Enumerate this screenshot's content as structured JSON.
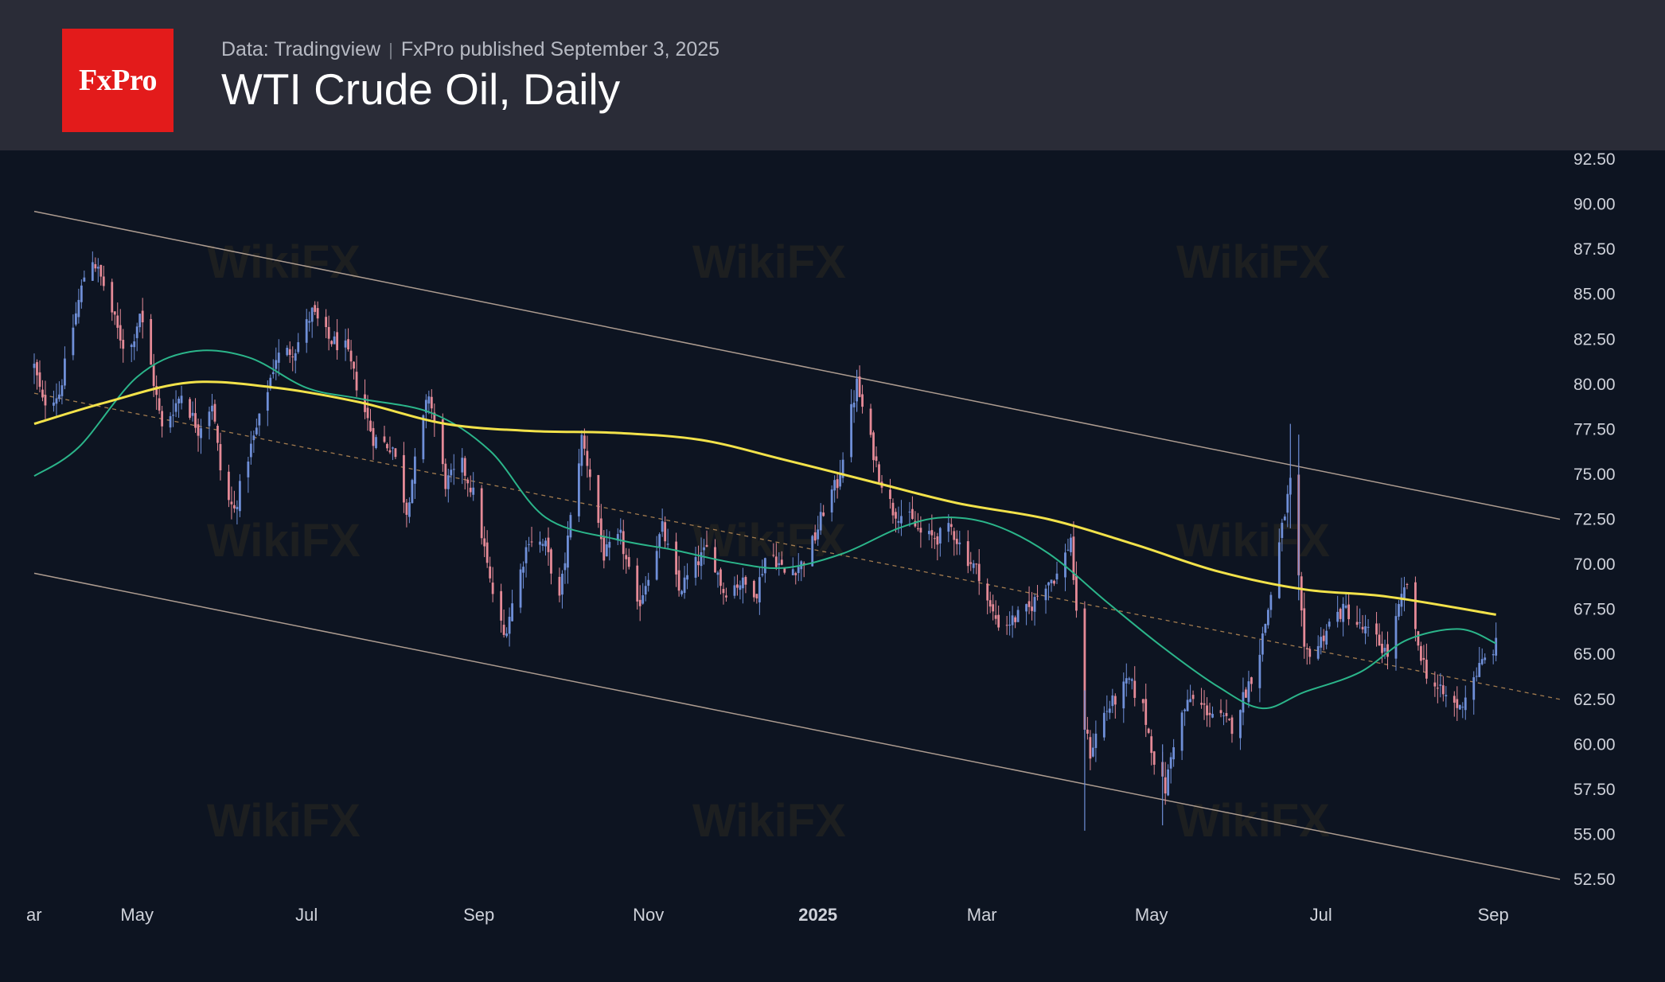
{
  "header": {
    "logo_text": "FxPro",
    "source": "Data: Tradingview",
    "published": "FxPro published September 3, 2025",
    "title": "WTI Crude Oil, Daily"
  },
  "watermark_text": "WikiFX",
  "colors": {
    "background": "#0d1421",
    "header": "#2a2c37",
    "logo": "#e31b1b",
    "up_candle": "#6f8fd8",
    "down_candle": "#e58a97",
    "ma_200": "#f2e24a",
    "ma_50": "#2bb58a",
    "channel": "#c9b4a4",
    "midline": "#c8955a"
  },
  "chart_data": {
    "type": "line",
    "series_type": "candlestick",
    "title": "WTI Crude Oil, Daily",
    "ylim": [
      52.5,
      92.5
    ],
    "x_range": [
      "2024-03-25",
      "2025-09-25"
    ],
    "y_ticks": [
      "92.50",
      "90.00",
      "87.50",
      "85.00",
      "82.50",
      "80.00",
      "77.50",
      "75.00",
      "72.50",
      "70.00",
      "67.50",
      "65.00",
      "62.50",
      "60.00",
      "57.50",
      "55.00",
      "52.50"
    ],
    "x_ticks": [
      {
        "label": "ar",
        "date": "2024-03-25"
      },
      {
        "label": "May",
        "date": "2024-05-01"
      },
      {
        "label": "Jul",
        "date": "2024-07-01"
      },
      {
        "label": "Sep",
        "date": "2024-09-01"
      },
      {
        "label": "Nov",
        "date": "2024-11-01"
      },
      {
        "label": "2025",
        "date": "2025-01-01",
        "bold": true
      },
      {
        "label": "Mar",
        "date": "2025-03-01"
      },
      {
        "label": "May",
        "date": "2025-05-01"
      },
      {
        "label": "Jul",
        "date": "2025-07-01"
      },
      {
        "label": "Sep",
        "date": "2025-09-01"
      }
    ],
    "price_anchors": [
      [
        "2024-03-25",
        81.0
      ],
      [
        "2024-03-28",
        79.0
      ],
      [
        "2024-04-03",
        79.5
      ],
      [
        "2024-04-07",
        82.5
      ],
      [
        "2024-04-12",
        86.0
      ],
      [
        "2024-04-15",
        87.0
      ],
      [
        "2024-04-19",
        85.5
      ],
      [
        "2024-04-24",
        83.0
      ],
      [
        "2024-04-28",
        81.5
      ],
      [
        "2024-05-02",
        84.0
      ],
      [
        "2024-05-06",
        81.0
      ],
      [
        "2024-05-10",
        77.5
      ],
      [
        "2024-05-17",
        79.5
      ],
      [
        "2024-05-23",
        77.5
      ],
      [
        "2024-05-28",
        79.0
      ],
      [
        "2024-06-01",
        74.0
      ],
      [
        "2024-06-05",
        73.0
      ],
      [
        "2024-06-10",
        76.0
      ],
      [
        "2024-06-14",
        78.0
      ],
      [
        "2024-06-20",
        81.5
      ],
      [
        "2024-06-27",
        82.0
      ],
      [
        "2024-07-03",
        84.0
      ],
      [
        "2024-07-09",
        82.5
      ],
      [
        "2024-07-15",
        82.0
      ],
      [
        "2024-07-20",
        79.5
      ],
      [
        "2024-07-25",
        77.0
      ],
      [
        "2024-08-01",
        76.5
      ],
      [
        "2024-08-06",
        73.0
      ],
      [
        "2024-08-10",
        76.5
      ],
      [
        "2024-08-14",
        79.5
      ],
      [
        "2024-08-20",
        74.5
      ],
      [
        "2024-08-26",
        75.5
      ],
      [
        "2024-08-31",
        73.5
      ],
      [
        "2024-09-05",
        69.0
      ],
      [
        "2024-09-10",
        66.0
      ],
      [
        "2024-09-15",
        69.0
      ],
      [
        "2024-09-19",
        71.5
      ],
      [
        "2024-09-25",
        71.0
      ],
      [
        "2024-09-30",
        68.0
      ],
      [
        "2024-10-04",
        72.5
      ],
      [
        "2024-10-08",
        77.0
      ],
      [
        "2024-10-11",
        75.0
      ],
      [
        "2024-10-16",
        70.5
      ],
      [
        "2024-10-22",
        71.5
      ],
      [
        "2024-10-28",
        67.5
      ],
      [
        "2024-11-02",
        70.0
      ],
      [
        "2024-11-06",
        72.0
      ],
      [
        "2024-11-12",
        68.5
      ],
      [
        "2024-11-18",
        70.0
      ],
      [
        "2024-11-23",
        71.0
      ],
      [
        "2024-11-28",
        68.5
      ],
      [
        "2024-12-04",
        69.0
      ],
      [
        "2024-12-10",
        68.5
      ],
      [
        "2024-12-14",
        71.0
      ],
      [
        "2024-12-20",
        69.5
      ],
      [
        "2024-12-26",
        70.0
      ],
      [
        "2024-12-31",
        71.5
      ],
      [
        "2025-01-04",
        73.5
      ],
      [
        "2025-01-08",
        74.5
      ],
      [
        "2025-01-13",
        78.5
      ],
      [
        "2025-01-15",
        80.0
      ],
      [
        "2025-01-18",
        78.0
      ],
      [
        "2025-01-23",
        75.0
      ],
      [
        "2025-01-28",
        73.0
      ],
      [
        "2025-02-03",
        72.5
      ],
      [
        "2025-02-08",
        71.5
      ],
      [
        "2025-02-13",
        71.5
      ],
      [
        "2025-02-18",
        72.0
      ],
      [
        "2025-02-23",
        70.5
      ],
      [
        "2025-02-28",
        69.5
      ],
      [
        "2025-03-04",
        67.5
      ],
      [
        "2025-03-08",
        66.5
      ],
      [
        "2025-03-13",
        67.0
      ],
      [
        "2025-03-18",
        67.5
      ],
      [
        "2025-03-24",
        69.0
      ],
      [
        "2025-03-29",
        69.5
      ],
      [
        "2025-04-02",
        71.5
      ],
      [
        "2025-04-04",
        67.0
      ],
      [
        "2025-04-07",
        61.0
      ],
      [
        "2025-04-09",
        59.5
      ],
      [
        "2025-04-13",
        61.5
      ],
      [
        "2025-04-18",
        62.5
      ],
      [
        "2025-04-23",
        63.5
      ],
      [
        "2025-04-28",
        62.0
      ],
      [
        "2025-05-03",
        58.5
      ],
      [
        "2025-05-06",
        57.5
      ],
      [
        "2025-05-10",
        61.0
      ],
      [
        "2025-05-15",
        62.5
      ],
      [
        "2025-05-20",
        62.0
      ],
      [
        "2025-05-25",
        61.5
      ],
      [
        "2025-05-30",
        61.0
      ],
      [
        "2025-06-04",
        63.0
      ],
      [
        "2025-06-08",
        64.5
      ],
      [
        "2025-06-12",
        67.5
      ],
      [
        "2025-06-17",
        72.0
      ],
      [
        "2025-06-20",
        74.5
      ],
      [
        "2025-06-23",
        69.0
      ],
      [
        "2025-06-25",
        65.0
      ],
      [
        "2025-06-30",
        65.5
      ],
      [
        "2025-07-05",
        67.0
      ],
      [
        "2025-07-10",
        67.5
      ],
      [
        "2025-07-15",
        66.5
      ],
      [
        "2025-07-20",
        66.0
      ],
      [
        "2025-07-25",
        65.0
      ],
      [
        "2025-07-29",
        67.5
      ],
      [
        "2025-08-01",
        69.0
      ],
      [
        "2025-08-04",
        66.0
      ],
      [
        "2025-08-08",
        64.0
      ],
      [
        "2025-08-12",
        63.0
      ],
      [
        "2025-08-16",
        62.5
      ],
      [
        "2025-08-20",
        62.0
      ],
      [
        "2025-08-24",
        63.5
      ],
      [
        "2025-08-28",
        64.5
      ],
      [
        "2025-09-02",
        65.5
      ]
    ],
    "ma_200": [
      [
        "2024-03-25",
        77.8
      ],
      [
        "2024-04-20",
        79.0
      ],
      [
        "2024-05-20",
        80.1
      ],
      [
        "2024-06-20",
        79.8
      ],
      [
        "2024-07-20",
        79.0
      ],
      [
        "2024-08-20",
        77.8
      ],
      [
        "2024-09-20",
        77.4
      ],
      [
        "2024-10-20",
        77.3
      ],
      [
        "2024-11-20",
        76.9
      ],
      [
        "2024-12-20",
        75.8
      ],
      [
        "2025-01-20",
        74.6
      ],
      [
        "2025-02-20",
        73.4
      ],
      [
        "2025-03-25",
        72.5
      ],
      [
        "2025-04-25",
        71.1
      ],
      [
        "2025-05-25",
        69.6
      ],
      [
        "2025-06-25",
        68.6
      ],
      [
        "2025-07-25",
        68.2
      ],
      [
        "2025-09-02",
        67.2
      ]
    ],
    "ma_50": [
      [
        "2024-03-25",
        74.9
      ],
      [
        "2024-04-10",
        76.5
      ],
      [
        "2024-05-01",
        80.4
      ],
      [
        "2024-05-20",
        81.8
      ],
      [
        "2024-06-10",
        81.5
      ],
      [
        "2024-07-01",
        79.8
      ],
      [
        "2024-07-20",
        79.2
      ],
      [
        "2024-08-15",
        78.4
      ],
      [
        "2024-09-05",
        76.3
      ],
      [
        "2024-09-25",
        72.6
      ],
      [
        "2024-10-20",
        71.4
      ],
      [
        "2024-11-10",
        70.8
      ],
      [
        "2024-12-01",
        70.1
      ],
      [
        "2024-12-20",
        69.8
      ],
      [
        "2025-01-10",
        70.6
      ],
      [
        "2025-01-30",
        72.0
      ],
      [
        "2025-02-15",
        72.6
      ],
      [
        "2025-03-05",
        72.2
      ],
      [
        "2025-03-25",
        70.6
      ],
      [
        "2025-04-15",
        67.9
      ],
      [
        "2025-05-05",
        65.4
      ],
      [
        "2025-05-25",
        63.2
      ],
      [
        "2025-06-10",
        62.0
      ],
      [
        "2025-06-25",
        62.9
      ],
      [
        "2025-07-15",
        64.0
      ],
      [
        "2025-08-01",
        65.8
      ],
      [
        "2025-08-20",
        66.4
      ],
      [
        "2025-09-02",
        65.6
      ]
    ],
    "channel_upper": [
      [
        "2024-03-25",
        89.6
      ],
      [
        "2025-09-25",
        72.5
      ]
    ],
    "channel_lower": [
      [
        "2024-03-25",
        69.5
      ],
      [
        "2025-09-25",
        52.5
      ]
    ],
    "channel_mid": [
      [
        "2024-03-25",
        79.5
      ],
      [
        "2025-09-25",
        62.5
      ]
    ]
  }
}
